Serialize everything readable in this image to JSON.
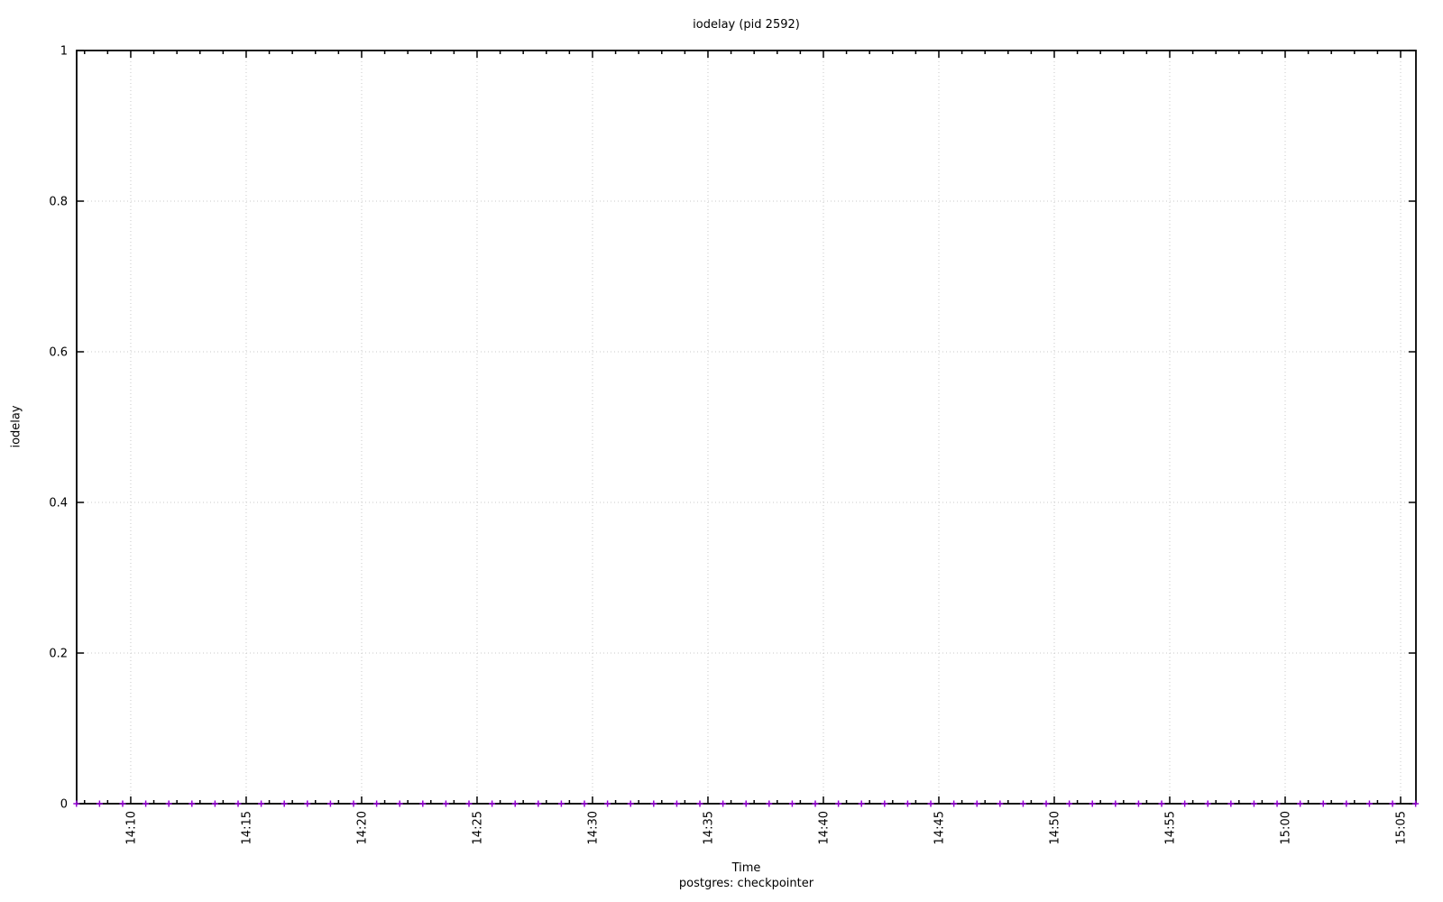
{
  "figure": {
    "title": "iodelay (pid 2592)",
    "xlabel": "Time",
    "ylabel": "iodelay",
    "series_key": "postgres: checkpointer"
  },
  "chart_data": {
    "type": "scatter",
    "title": "iodelay (pid 2592)",
    "xlabel": "Time",
    "ylabel": "iodelay",
    "ylim": [
      0,
      1
    ],
    "y_ticks": [
      "0",
      "0.2",
      "0.4",
      "0.6",
      "0.8",
      "1"
    ],
    "x_ticks": [
      "14:10",
      "14:15",
      "14:20",
      "14:25",
      "14:30",
      "14:35",
      "14:40",
      "14:45",
      "14:50",
      "14:55",
      "15:00",
      "15:05"
    ],
    "x_minor_tick_interval": "1 minute",
    "grid": true,
    "legend_position": "below-x-axis-center",
    "marker": "plus",
    "marker_color": "#9400d3",
    "grid_color": "#c8c8c8",
    "series": [
      {
        "name": "postgres: checkpointer",
        "x": [
          "14:08",
          "14:09",
          "14:10",
          "14:11",
          "14:12",
          "14:13",
          "14:14",
          "14:15",
          "14:16",
          "14:17",
          "14:18",
          "14:19",
          "14:20",
          "14:21",
          "14:22",
          "14:23",
          "14:24",
          "14:25",
          "14:26",
          "14:27",
          "14:28",
          "14:29",
          "14:30",
          "14:31",
          "14:32",
          "14:33",
          "14:34",
          "14:35",
          "14:36",
          "14:37",
          "14:38",
          "14:39",
          "14:40",
          "14:41",
          "14:42",
          "14:43",
          "14:44",
          "14:45",
          "14:46",
          "14:47",
          "14:48",
          "14:49",
          "14:50",
          "14:51",
          "14:52",
          "14:53",
          "14:54",
          "14:55",
          "14:56",
          "14:57",
          "14:58",
          "14:59",
          "15:00",
          "15:01",
          "15:02",
          "15:03",
          "15:04",
          "15:05",
          "15:06"
        ],
        "values": [
          0,
          0,
          0,
          0,
          0,
          0,
          0,
          0,
          0,
          0,
          0,
          0,
          0,
          0,
          0,
          0,
          0,
          0,
          0,
          0,
          0,
          0,
          0,
          0,
          0,
          0,
          0,
          0,
          0,
          0,
          0,
          0,
          0,
          0,
          0,
          0,
          0,
          0,
          0,
          0,
          0,
          0,
          0,
          0,
          0,
          0,
          0,
          0,
          0,
          0,
          0,
          0,
          0,
          0,
          0,
          0,
          0,
          0,
          0
        ]
      }
    ]
  }
}
